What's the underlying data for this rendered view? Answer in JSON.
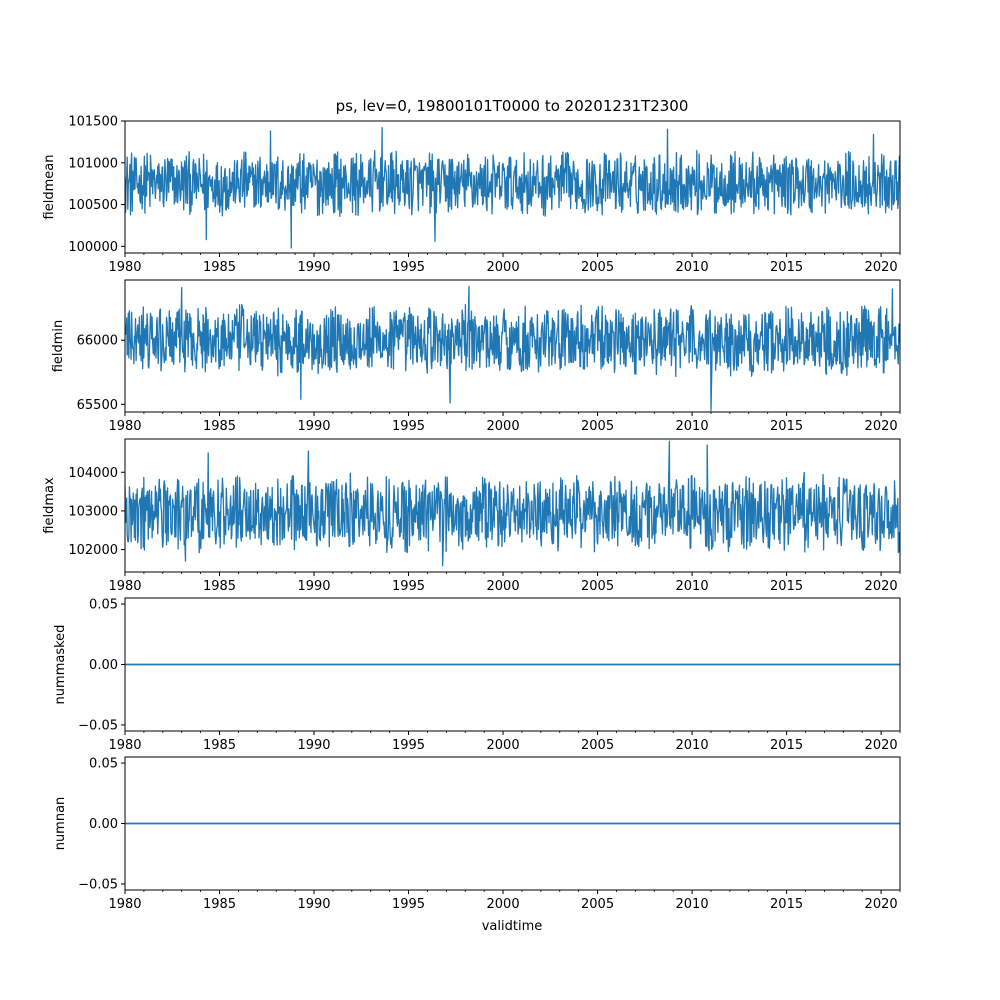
{
  "chart_data": {
    "type": "line",
    "title": "ps, lev=0, 19800101T0000 to 20201231T2300",
    "xlabel": "validtime",
    "x_range": [
      1980,
      2021
    ],
    "x_ticks": [
      1980,
      1985,
      1990,
      1995,
      2000,
      2005,
      2010,
      2015,
      2020
    ],
    "x_tick_labels": [
      "1980",
      "1985",
      "1990",
      "1995",
      "2000",
      "2005",
      "2010",
      "2015",
      "2020"
    ],
    "line_color": "#1f77b4",
    "panels": [
      {
        "name": "fieldmean",
        "ylabel": "fieldmean",
        "ylim": [
          99920,
          101500
        ],
        "y_ticks": [
          100000,
          100500,
          101000,
          101500
        ],
        "y_tick_labels": [
          "100000",
          "100500",
          "101000",
          "101500"
        ],
        "band": {
          "low": 100380,
          "high": 101120,
          "center": 100750
        },
        "extremes": [
          {
            "x": 1988.8,
            "value": 99980
          },
          {
            "x": 1984.3,
            "value": 100080
          },
          {
            "x": 1996.4,
            "value": 100060
          },
          {
            "x": 1993.6,
            "value": 101420
          },
          {
            "x": 2008.7,
            "value": 101400
          },
          {
            "x": 1987.7,
            "value": 101380
          },
          {
            "x": 2019.6,
            "value": 101340
          }
        ]
      },
      {
        "name": "fieldmin",
        "ylabel": "fieldmin",
        "ylim": [
          65440,
          66470
        ],
        "y_ticks": [
          65500,
          66000
        ],
        "y_tick_labels": [
          "65500",
          "66000"
        ],
        "band": {
          "low": 65730,
          "high": 66250,
          "center": 66000
        },
        "extremes": [
          {
            "x": 1983.0,
            "value": 66410
          },
          {
            "x": 1998.2,
            "value": 66420
          },
          {
            "x": 2020.6,
            "value": 66400
          },
          {
            "x": 2011.0,
            "value": 65450
          },
          {
            "x": 1989.3,
            "value": 65540
          },
          {
            "x": 1997.2,
            "value": 65510
          }
        ]
      },
      {
        "name": "fieldmax",
        "ylabel": "fieldmax",
        "ylim": [
          101420,
          104860
        ],
        "y_ticks": [
          102000,
          103000,
          104000
        ],
        "y_tick_labels": [
          "102000",
          "103000",
          "104000"
        ],
        "band": {
          "low": 102050,
          "high": 103950,
          "center": 102950
        },
        "extremes": [
          {
            "x": 2008.8,
            "value": 104800
          },
          {
            "x": 2010.8,
            "value": 104700
          },
          {
            "x": 1989.7,
            "value": 104550
          },
          {
            "x": 1984.4,
            "value": 104500
          },
          {
            "x": 1996.8,
            "value": 101580
          },
          {
            "x": 1983.2,
            "value": 101700
          }
        ]
      },
      {
        "name": "nummasked",
        "ylabel": "nummasked",
        "ylim": [
          -0.055,
          0.055
        ],
        "y_ticks": [
          -0.05,
          0.0,
          0.05
        ],
        "y_tick_labels": [
          "−0.05",
          "0.00",
          "0.05"
        ],
        "constant": 0.0
      },
      {
        "name": "numnan",
        "ylabel": "numnan",
        "ylim": [
          -0.055,
          0.055
        ],
        "y_ticks": [
          -0.05,
          0.0,
          0.05
        ],
        "y_tick_labels": [
          "−0.05",
          "0.00",
          "0.05"
        ],
        "constant": 0.0
      }
    ]
  }
}
